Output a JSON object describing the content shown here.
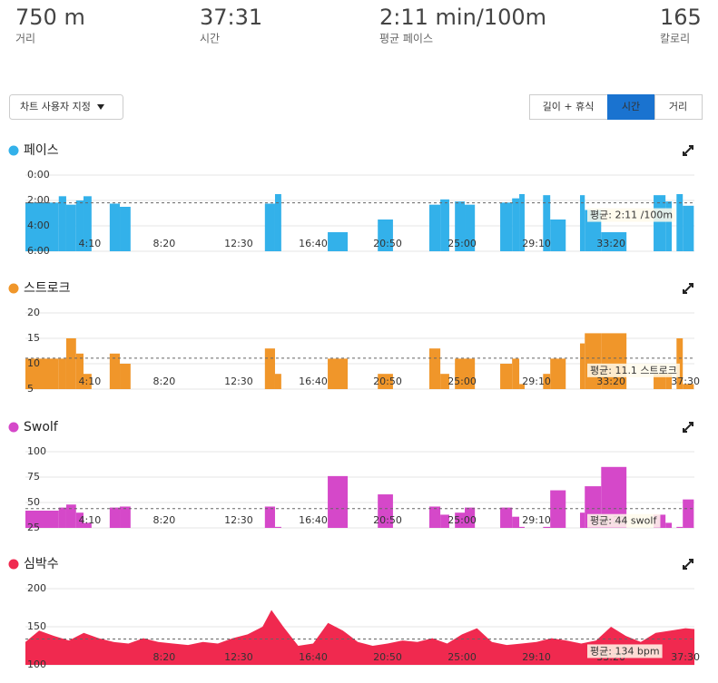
{
  "stats": [
    {
      "value": "750 m",
      "label": "거리"
    },
    {
      "value": "37:31",
      "label": "시간"
    },
    {
      "value": "2:11 min/100m",
      "label": "평균 페이스"
    },
    {
      "value": "165",
      "label": "칼로리"
    }
  ],
  "customize_button": "차트 사용자 지정",
  "view_tabs": {
    "options": [
      "길이 + 휴식",
      "시간",
      "거리"
    ],
    "selected": 1
  },
  "laps": {
    "start": [
      34,
      146,
      171,
      204,
      229,
      317,
      351,
      838,
      872,
      1049,
      1217,
      1390,
      1427,
      1476,
      1509,
      1628,
      1668,
      1692,
      1772,
      1796,
      1896,
      1912,
      1967,
      2143,
      2183,
      2220,
      2241
    ],
    "end": [
      146,
      171,
      204,
      229,
      256,
      351,
      387,
      872,
      893,
      1116,
      1268,
      1427,
      1457,
      1509,
      1543,
      1668,
      1692,
      1710,
      1796,
      1848,
      1912,
      1967,
      2052,
      2183,
      2204,
      2241,
      2278
    ]
  },
  "chart_data": [
    {
      "type": "bar",
      "title": "페이스",
      "color": "#33b1ea",
      "inverted": true,
      "values": [
        130,
        100,
        140,
        120,
        100,
        135,
        150,
        135,
        90,
        270,
        210,
        140,
        115,
        125,
        140,
        130,
        110,
        90,
        95,
        210,
        95,
        165,
        270,
        95,
        125,
        90,
        145
      ],
      "ylim": [
        0,
        360
      ],
      "yticks": [
        {
          "value": 0,
          "label": "0:00"
        },
        {
          "value": 120,
          "label": "2:00"
        },
        {
          "value": 240,
          "label": "4:00"
        },
        {
          "value": 360,
          "label": "6:00"
        }
      ],
      "xlim": [
        34,
        2280
      ],
      "xticks": [
        {
          "value": 250,
          "label": "4:10"
        },
        {
          "value": 500,
          "label": "8:20"
        },
        {
          "value": 750,
          "label": "12:30"
        },
        {
          "value": 1000,
          "label": "16:40"
        },
        {
          "value": 1250,
          "label": "20:50"
        },
        {
          "value": 1500,
          "label": "25:00"
        },
        {
          "value": 1750,
          "label": "29:10"
        },
        {
          "value": 2000,
          "label": "33:20"
        }
      ],
      "average": 131,
      "average_label": "평균: 2:11 /100m"
    },
    {
      "type": "bar",
      "title": "스트로크",
      "color": "#f0962a",
      "values": [
        11,
        11,
        15,
        12,
        8,
        12,
        10,
        13,
        8,
        11,
        8,
        13,
        8,
        11,
        11,
        10,
        11,
        6,
        8,
        11,
        14,
        16,
        16,
        8,
        8,
        15,
        6
      ],
      "ylim": [
        5,
        20
      ],
      "yticks": [
        5,
        10,
        15,
        20
      ],
      "xlim": [
        34,
        2280
      ],
      "xticks": [
        {
          "value": 250,
          "label": "4:10"
        },
        {
          "value": 500,
          "label": "8:20"
        },
        {
          "value": 750,
          "label": "12:30"
        },
        {
          "value": 1000,
          "label": "16:40"
        },
        {
          "value": 1250,
          "label": "20:50"
        },
        {
          "value": 1500,
          "label": "25:00"
        },
        {
          "value": 1750,
          "label": "29:10"
        },
        {
          "value": 2000,
          "label": "33:20"
        },
        {
          "value": 2250,
          "label": "37:30"
        }
      ],
      "average": 11.1,
      "average_label": "평균: 11.1 스트로크"
    },
    {
      "type": "bar",
      "title": "Swolf",
      "color": "#d548c9",
      "values": [
        42,
        45,
        48,
        40,
        30,
        45,
        46,
        46,
        26,
        76,
        58,
        46,
        38,
        40,
        45,
        45,
        36,
        26,
        26,
        62,
        40,
        66,
        85,
        38,
        30,
        26,
        53
      ],
      "ylim": [
        25,
        100
      ],
      "yticks": [
        25,
        50,
        75,
        100
      ],
      "xlim": [
        34,
        2280
      ],
      "xticks": [
        {
          "value": 250,
          "label": "4:10"
        },
        {
          "value": 500,
          "label": "8:20"
        },
        {
          "value": 750,
          "label": "12:30"
        },
        {
          "value": 1000,
          "label": "16:40"
        },
        {
          "value": 1250,
          "label": "20:50"
        },
        {
          "value": 1500,
          "label": "25:00"
        },
        {
          "value": 1750,
          "label": "29:10"
        },
        {
          "value": 2000,
          "label": "33:20"
        }
      ],
      "average": 44,
      "average_label": "평균: 44 swolf"
    },
    {
      "type": "area",
      "title": "심박수",
      "color": "#f0294f",
      "x": [
        34,
        80,
        130,
        180,
        230,
        280,
        330,
        380,
        430,
        480,
        530,
        580,
        630,
        680,
        730,
        780,
        830,
        860,
        900,
        950,
        1000,
        1050,
        1100,
        1150,
        1200,
        1250,
        1300,
        1350,
        1400,
        1450,
        1500,
        1550,
        1600,
        1650,
        1700,
        1750,
        1800,
        1850,
        1900,
        1950,
        2000,
        2050,
        2100,
        2150,
        2200,
        2250,
        2280
      ],
      "values": [
        130,
        145,
        138,
        132,
        142,
        135,
        130,
        128,
        135,
        130,
        128,
        126,
        130,
        128,
        135,
        140,
        150,
        172,
        150,
        125,
        128,
        155,
        145,
        130,
        125,
        128,
        132,
        130,
        135,
        128,
        140,
        148,
        130,
        126,
        128,
        130,
        135,
        132,
        128,
        132,
        150,
        138,
        130,
        142,
        145,
        148,
        147
      ],
      "ylim": [
        100,
        200
      ],
      "yticks": [
        100,
        150,
        200
      ],
      "xlim": [
        34,
        2280
      ],
      "xticks": [
        {
          "value": 500,
          "label": "8:20"
        },
        {
          "value": 750,
          "label": "12:30"
        },
        {
          "value": 1000,
          "label": "16:40"
        },
        {
          "value": 1250,
          "label": "20:50"
        },
        {
          "value": 1500,
          "label": "25:00"
        },
        {
          "value": 1750,
          "label": "29:10"
        },
        {
          "value": 2000,
          "label": "33:20"
        },
        {
          "value": 2250,
          "label": "37:30"
        }
      ],
      "average": 134,
      "average_label": "평균: 134 bpm"
    }
  ]
}
